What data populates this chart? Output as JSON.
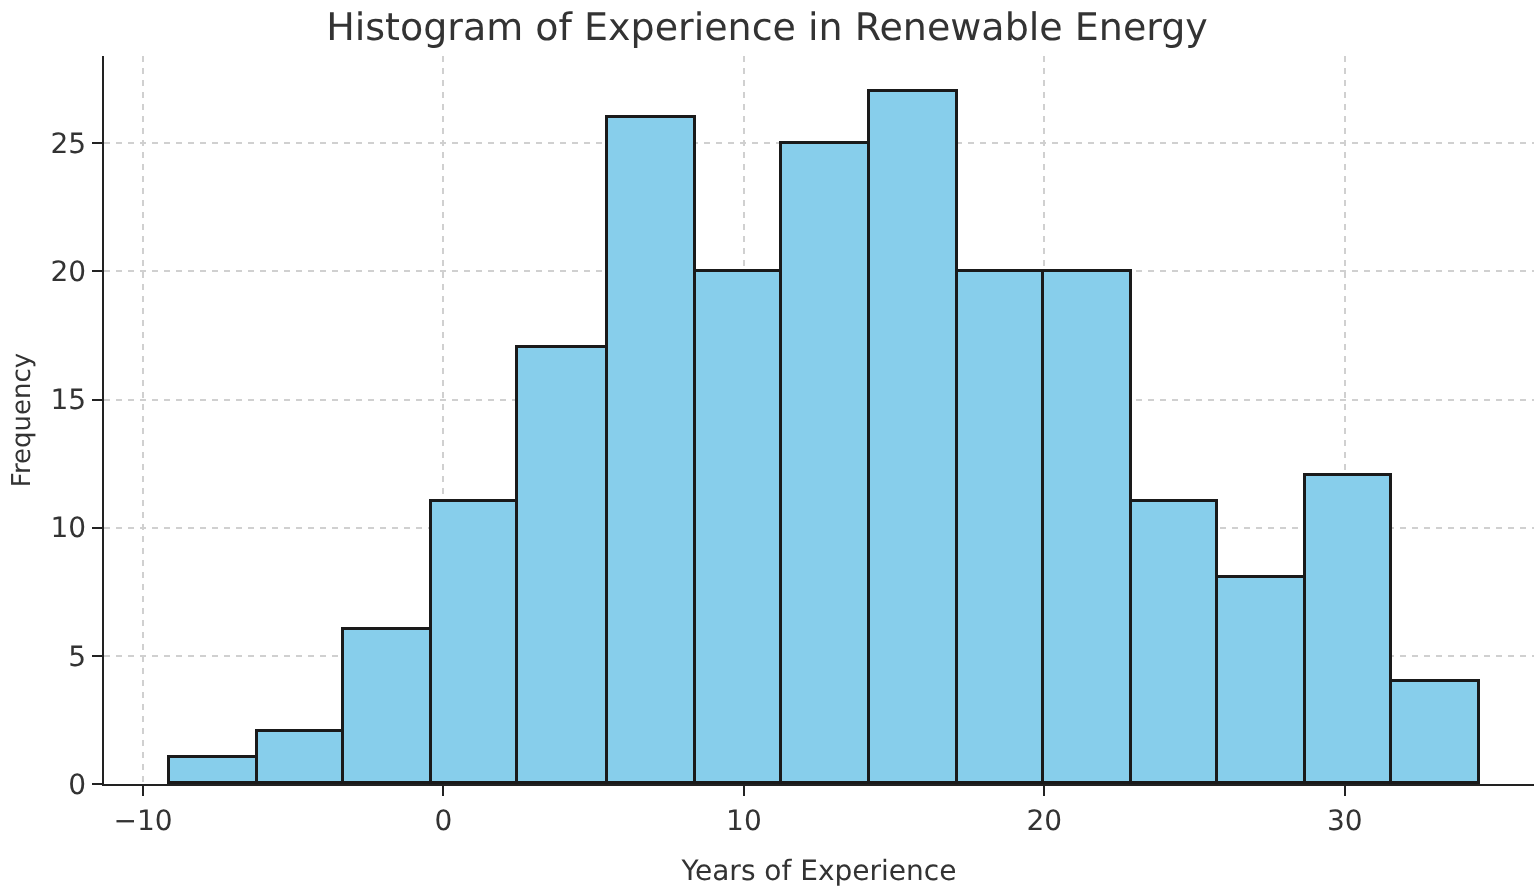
{
  "chart_data": {
    "type": "histogram",
    "title": "Histogram of Experience in Renewable Energy",
    "xlabel": "Years of Experience",
    "ylabel": "Frequency",
    "bins": [
      -9.1,
      -6.2,
      -3.3,
      -0.4,
      2.5,
      5.5,
      8.4,
      11.3,
      14.2,
      17.1,
      20.0,
      22.9,
      25.8,
      28.7,
      31.6,
      34.5
    ],
    "values": [
      1,
      2,
      6,
      11,
      17,
      26,
      20,
      25,
      27,
      20,
      20,
      11,
      8,
      12,
      4
    ],
    "color": "#87ceeb",
    "xlim": [
      -11.3,
      36.3
    ],
    "xticks": [
      {
        "value": -10,
        "label": "−10"
      },
      0,
      10,
      20,
      30
    ],
    "ylim": [
      0,
      28.4
    ],
    "yticks": [
      0,
      5,
      10,
      15,
      20,
      25
    ],
    "grid": true
  }
}
